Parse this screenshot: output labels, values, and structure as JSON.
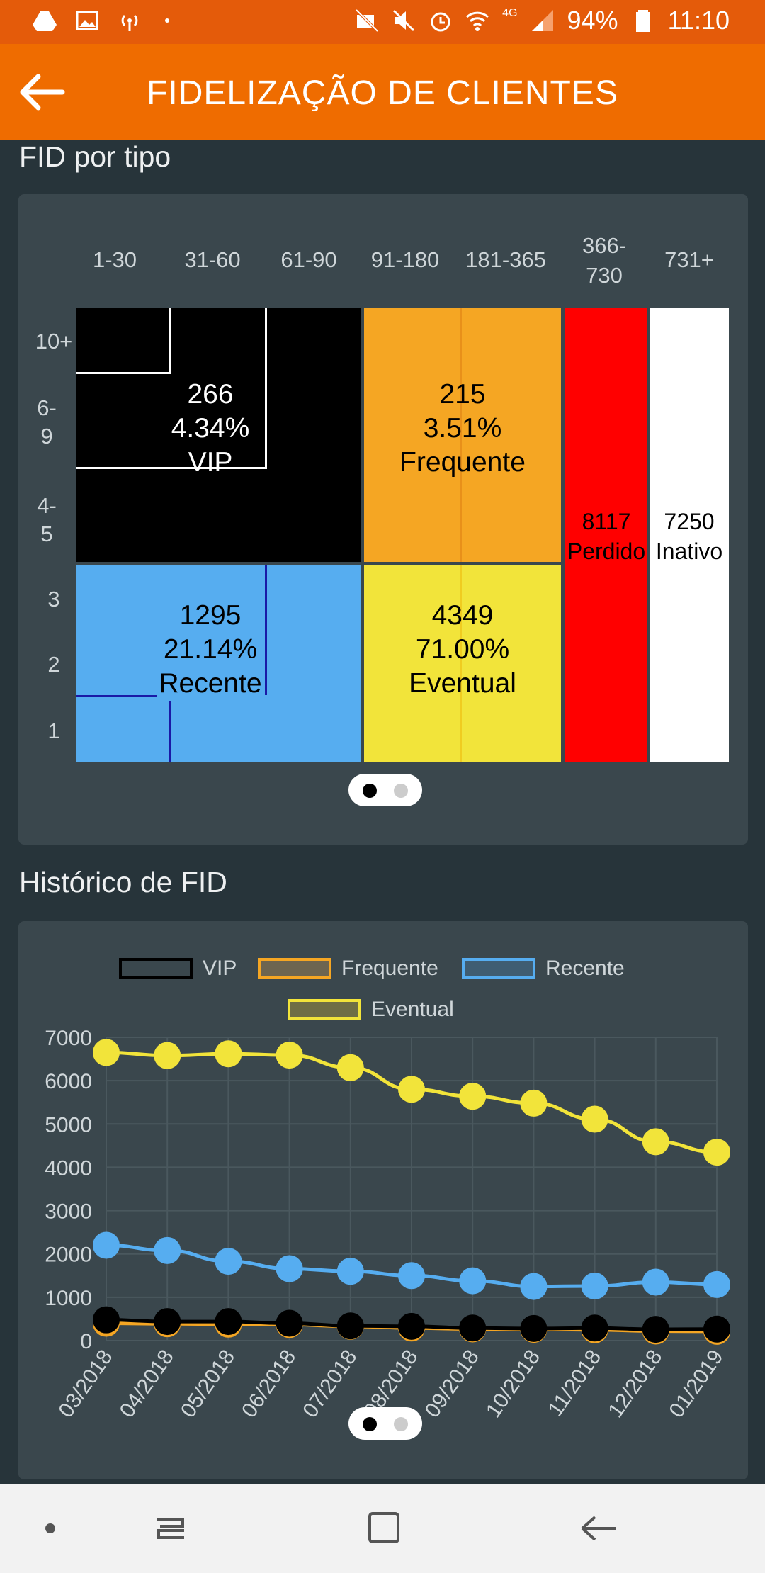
{
  "status_bar": {
    "battery": "94%",
    "time": "11:10",
    "network": "4G",
    "left_icons": [
      "drive-icon",
      "image-icon",
      "broadcast-icon",
      "dot-icon"
    ],
    "right_icons": [
      "no-camera-icon",
      "mute-icon",
      "alarm-icon",
      "wifi-icon",
      "signal-icon",
      "battery-icon"
    ]
  },
  "app_bar": {
    "title": "FIDELIZAÇÃO DE CLIENTES",
    "back_icon": "arrow-left-icon",
    "color": "#ef6c00"
  },
  "fid_tipo": {
    "title": "FID por tipo",
    "columns": [
      "1-30",
      "31-60",
      "61-90",
      "91-180",
      "181-365",
      "366-730",
      "731+"
    ],
    "rows": [
      "10+",
      "6-9",
      "4-5",
      "3",
      "2",
      "1"
    ],
    "segments": [
      {
        "count": "266",
        "percent": "4.34%",
        "label": "VIP",
        "color": "#000000"
      },
      {
        "count": "215",
        "percent": "3.51%",
        "label": "Frequente",
        "color": "#f5a623"
      },
      {
        "count": "1295",
        "percent": "21.14%",
        "label": "Recente",
        "color": "#56adf0"
      },
      {
        "count": "4349",
        "percent": "71.00%",
        "label": "Eventual",
        "color": "#f2e43a"
      },
      {
        "count": "8117",
        "label": "Perdido",
        "color": "#ff0000"
      },
      {
        "count": "7250",
        "label": "Inativo",
        "color": "#ffffff"
      }
    ]
  },
  "historico": {
    "title": "Histórico de FID",
    "legend": [
      {
        "name": "VIP",
        "color": "#000000"
      },
      {
        "name": "Frequente",
        "color": "#f5a623"
      },
      {
        "name": "Recente",
        "color": "#56adf0"
      },
      {
        "name": "Eventual",
        "color": "#f2e43a"
      }
    ]
  },
  "chart_data": {
    "type": "line",
    "x": [
      "03/2018",
      "04/2018",
      "05/2018",
      "06/2018",
      "07/2018",
      "08/2018",
      "09/2018",
      "10/2018",
      "11/2018",
      "12/2018",
      "01/2019"
    ],
    "yticks": [
      "0",
      "1000",
      "2000",
      "3000",
      "4000",
      "5000",
      "6000",
      "7000"
    ],
    "ylim": [
      0,
      7000
    ],
    "grid": true,
    "legend_position": "top",
    "series": [
      {
        "name": "VIP",
        "color": "#000000",
        "values": [
          480,
          440,
          440,
          400,
          340,
          330,
          290,
          280,
          290,
          260,
          266
        ]
      },
      {
        "name": "Frequente",
        "color": "#f5a623",
        "values": [
          400,
          390,
          380,
          370,
          330,
          290,
          270,
          260,
          250,
          220,
          215
        ]
      },
      {
        "name": "Recente",
        "color": "#56adf0",
        "values": [
          2200,
          2080,
          1830,
          1660,
          1600,
          1500,
          1380,
          1250,
          1260,
          1350,
          1295
        ]
      },
      {
        "name": "Eventual",
        "color": "#f2e43a",
        "values": [
          6650,
          6580,
          6620,
          6590,
          6300,
          5800,
          5640,
          5480,
          5110,
          4590,
          4349
        ]
      }
    ]
  },
  "pager": {
    "active": 0,
    "count": 2
  },
  "nav_bar": {
    "icons": [
      "dot-icon",
      "recent-apps-icon",
      "home-icon",
      "back-icon"
    ]
  }
}
